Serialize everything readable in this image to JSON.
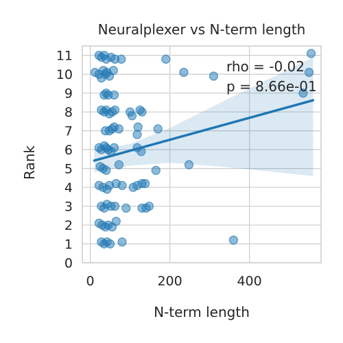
{
  "chart_data": {
    "type": "scatter",
    "title": "Neuralplexer vs N-term length",
    "xlabel": "N-term length",
    "ylabel": "Rank",
    "xlim": [
      -20,
      580
    ],
    "ylim": [
      0,
      11.5
    ],
    "xticks": [
      0,
      200,
      400
    ],
    "xtick_labels": [
      "0",
      "200",
      "400"
    ],
    "yticks": [
      0,
      1,
      2,
      3,
      4,
      5,
      6,
      7,
      8,
      9,
      10,
      11
    ],
    "ytick_labels": [
      "0",
      "1",
      "2",
      "3",
      "4",
      "5",
      "6",
      "7",
      "8",
      "9",
      "10",
      "11"
    ],
    "grid": true,
    "annotations": [
      "rho = -0.02",
      "p = 8.66e-01"
    ],
    "point_color": "#1f77b4",
    "points": [
      {
        "x": 22,
        "y": 11.0
      },
      {
        "x": 28,
        "y": 10.9
      },
      {
        "x": 35,
        "y": 11.0
      },
      {
        "x": 40,
        "y": 10.8
      },
      {
        "x": 52,
        "y": 10.9
      },
      {
        "x": 62,
        "y": 10.8
      },
      {
        "x": 78,
        "y": 10.8
      },
      {
        "x": 190,
        "y": 10.8
      },
      {
        "x": 555,
        "y": 11.1
      },
      {
        "x": 12,
        "y": 10.1
      },
      {
        "x": 22,
        "y": 10.0
      },
      {
        "x": 28,
        "y": 9.8
      },
      {
        "x": 33,
        "y": 10.2
      },
      {
        "x": 38,
        "y": 10.0
      },
      {
        "x": 42,
        "y": 10.1
      },
      {
        "x": 48,
        "y": 9.9
      },
      {
        "x": 58,
        "y": 10.2
      },
      {
        "x": 235,
        "y": 10.1
      },
      {
        "x": 310,
        "y": 9.9
      },
      {
        "x": 550,
        "y": 10.1
      },
      {
        "x": 35,
        "y": 8.9
      },
      {
        "x": 40,
        "y": 9.0
      },
      {
        "x": 45,
        "y": 8.9
      },
      {
        "x": 60,
        "y": 8.9
      },
      {
        "x": 535,
        "y": 9.0
      },
      {
        "x": 28,
        "y": 8.1
      },
      {
        "x": 35,
        "y": 8.0
      },
      {
        "x": 40,
        "y": 8.1
      },
      {
        "x": 48,
        "y": 7.9
      },
      {
        "x": 55,
        "y": 8.0
      },
      {
        "x": 62,
        "y": 8.1
      },
      {
        "x": 100,
        "y": 8.0
      },
      {
        "x": 105,
        "y": 7.8
      },
      {
        "x": 125,
        "y": 8.1
      },
      {
        "x": 130,
        "y": 8.0
      },
      {
        "x": 38,
        "y": 7.0
      },
      {
        "x": 48,
        "y": 7.0
      },
      {
        "x": 55,
        "y": 7.1
      },
      {
        "x": 60,
        "y": 7.2
      },
      {
        "x": 72,
        "y": 7.1
      },
      {
        "x": 118,
        "y": 6.8
      },
      {
        "x": 120,
        "y": 7.2
      },
      {
        "x": 170,
        "y": 7.1
      },
      {
        "x": 22,
        "y": 6.1
      },
      {
        "x": 28,
        "y": 6.0
      },
      {
        "x": 35,
        "y": 6.2
      },
      {
        "x": 40,
        "y": 6.1
      },
      {
        "x": 45,
        "y": 6.0
      },
      {
        "x": 52,
        "y": 5.9
      },
      {
        "x": 60,
        "y": 6.1
      },
      {
        "x": 118,
        "y": 6.1
      },
      {
        "x": 128,
        "y": 5.9
      },
      {
        "x": 25,
        "y": 5.1
      },
      {
        "x": 32,
        "y": 5.0
      },
      {
        "x": 40,
        "y": 4.9
      },
      {
        "x": 72,
        "y": 5.2
      },
      {
        "x": 165,
        "y": 4.9
      },
      {
        "x": 248,
        "y": 5.2
      },
      {
        "x": 22,
        "y": 4.1
      },
      {
        "x": 32,
        "y": 4.0
      },
      {
        "x": 42,
        "y": 3.9
      },
      {
        "x": 48,
        "y": 4.1
      },
      {
        "x": 65,
        "y": 4.2
      },
      {
        "x": 80,
        "y": 4.1
      },
      {
        "x": 108,
        "y": 4.0
      },
      {
        "x": 118,
        "y": 4.1
      },
      {
        "x": 130,
        "y": 4.2
      },
      {
        "x": 138,
        "y": 4.2
      },
      {
        "x": 28,
        "y": 3.0
      },
      {
        "x": 35,
        "y": 2.9
      },
      {
        "x": 42,
        "y": 3.1
      },
      {
        "x": 52,
        "y": 3.0
      },
      {
        "x": 62,
        "y": 3.0
      },
      {
        "x": 90,
        "y": 2.9
      },
      {
        "x": 130,
        "y": 2.9
      },
      {
        "x": 140,
        "y": 2.9
      },
      {
        "x": 148,
        "y": 3.0
      },
      {
        "x": 22,
        "y": 2.1
      },
      {
        "x": 30,
        "y": 2.0
      },
      {
        "x": 38,
        "y": 1.9
      },
      {
        "x": 45,
        "y": 2.0
      },
      {
        "x": 55,
        "y": 1.9
      },
      {
        "x": 65,
        "y": 2.2
      },
      {
        "x": 28,
        "y": 1.1
      },
      {
        "x": 35,
        "y": 1.0
      },
      {
        "x": 42,
        "y": 1.1
      },
      {
        "x": 50,
        "y": 1.0
      },
      {
        "x": 80,
        "y": 1.1
      },
      {
        "x": 360,
        "y": 1.2
      }
    ],
    "regression": {
      "x0": 10,
      "y0": 5.42,
      "x1": 560,
      "y1": 8.62
    },
    "ci_band": [
      {
        "x": 10,
        "lo": 4.8,
        "hi": 6.0
      },
      {
        "x": 100,
        "lo": 5.15,
        "hi": 6.3
      },
      {
        "x": 200,
        "lo": 5.3,
        "hi": 7.15
      },
      {
        "x": 300,
        "lo": 5.15,
        "hi": 8.2
      },
      {
        "x": 400,
        "lo": 4.95,
        "hi": 9.25
      },
      {
        "x": 560,
        "lo": 4.6,
        "hi": 10.9
      }
    ]
  }
}
